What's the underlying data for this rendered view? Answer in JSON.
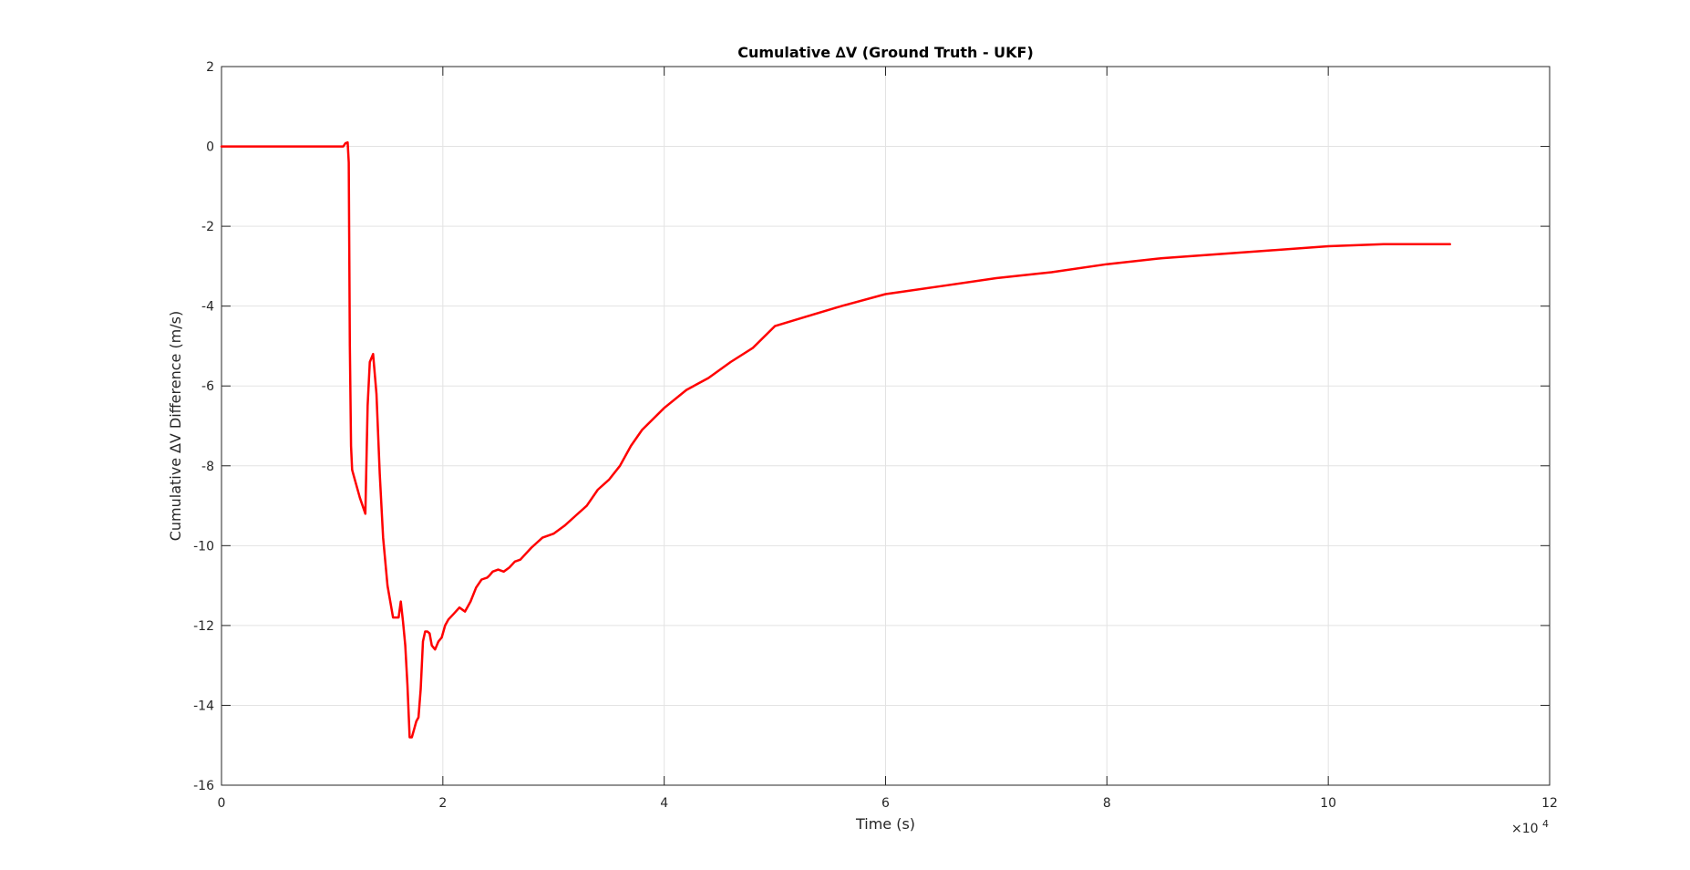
{
  "chart_data": {
    "type": "line",
    "title": "Cumulative ∆V (Ground Truth - UKF)",
    "xlabel": "Time (s)",
    "ylabel": "Cumulative ∆V Difference (m/s)",
    "x_exponent_label": "×10",
    "x_exponent_power": "4",
    "xlim": [
      0,
      12
    ],
    "ylim": [
      -16,
      2
    ],
    "grid": true,
    "x_ticks": [
      0,
      2,
      4,
      6,
      8,
      10,
      12
    ],
    "x_tick_labels": [
      "0",
      "2",
      "4",
      "6",
      "8",
      "10",
      "12"
    ],
    "y_ticks": [
      2,
      0,
      -2,
      -4,
      -6,
      -8,
      -10,
      -12,
      -14,
      -16
    ],
    "y_tick_labels": [
      "2",
      "0",
      "-2",
      "-4",
      "-6",
      "-8",
      "-10",
      "-12",
      "-14",
      "-16"
    ],
    "colors": {
      "line": "#ff0000",
      "grid": "#e3e3e3",
      "axis": "#262626"
    },
    "series": [
      {
        "x": [
          0,
          1.1,
          1.12,
          1.14,
          1.15,
          1.16,
          1.17,
          1.18,
          1.2,
          1.25,
          1.3,
          1.32,
          1.34,
          1.37,
          1.4,
          1.43,
          1.46,
          1.5,
          1.55,
          1.6,
          1.62,
          1.64,
          1.66,
          1.68,
          1.7,
          1.72,
          1.74,
          1.76,
          1.78,
          1.8,
          1.82,
          1.84,
          1.86,
          1.88,
          1.9,
          1.93,
          1.96,
          1.99,
          2.02,
          2.05,
          2.1,
          2.15,
          2.2,
          2.25,
          2.3,
          2.35,
          2.4,
          2.42,
          2.45,
          2.5,
          2.55,
          2.6,
          2.65,
          2.7,
          2.8,
          2.9,
          3.0,
          3.1,
          3.2,
          3.3,
          3.4,
          3.5,
          3.6,
          3.7,
          3.8,
          4.0,
          4.2,
          4.4,
          4.6,
          4.8,
          5.0,
          5.3,
          5.6,
          6.0,
          6.5,
          7.0,
          7.5,
          8.0,
          8.5,
          9.0,
          9.5,
          10.0,
          10.5,
          11.1
        ],
        "y": [
          0,
          0,
          0.08,
          0.1,
          -0.4,
          -5.0,
          -7.5,
          -8.1,
          -8.3,
          -8.8,
          -9.2,
          -6.5,
          -5.4,
          -5.2,
          -6.2,
          -8.2,
          -9.8,
          -11.0,
          -11.8,
          -11.8,
          -11.4,
          -11.9,
          -12.5,
          -13.5,
          -14.8,
          -14.8,
          -14.6,
          -14.4,
          -14.3,
          -13.6,
          -12.4,
          -12.15,
          -12.15,
          -12.2,
          -12.5,
          -12.6,
          -12.4,
          -12.3,
          -12.0,
          -11.85,
          -11.7,
          -11.55,
          -11.65,
          -11.4,
          -11.05,
          -10.85,
          -10.8,
          -10.75,
          -10.65,
          -10.6,
          -10.65,
          -10.55,
          -10.4,
          -10.35,
          -10.05,
          -9.8,
          -9.7,
          -9.5,
          -9.25,
          -9.0,
          -8.6,
          -8.35,
          -8.0,
          -7.5,
          -7.1,
          -6.55,
          -6.1,
          -5.8,
          -5.4,
          -5.05,
          -4.5,
          -4.25,
          -4.0,
          -3.7,
          -3.5,
          -3.3,
          -3.15,
          -2.95,
          -2.8,
          -2.7,
          -2.6,
          -2.5,
          -2.45,
          -2.45
        ],
        "color": "#ff0000"
      }
    ]
  }
}
